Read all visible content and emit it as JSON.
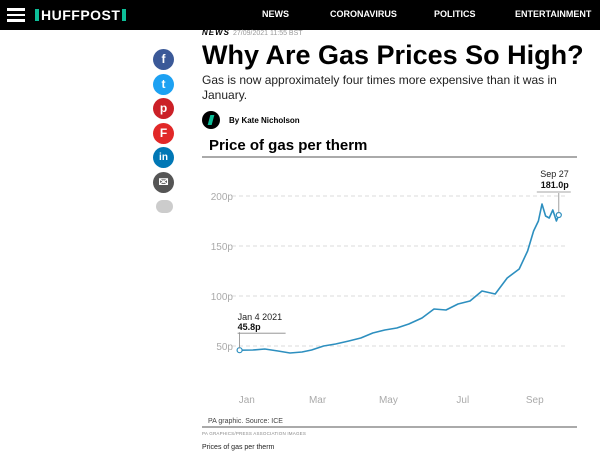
{
  "header": {
    "logo": "HUFFPOST",
    "nav": [
      {
        "label": "NEWS"
      },
      {
        "label": "CORONAVIRUS"
      },
      {
        "label": "POLITICS"
      },
      {
        "label": "ENTERTAINMENT"
      }
    ]
  },
  "article": {
    "section": "NEWS",
    "timestamp": "27/09/2021 11:55 BST",
    "title": "Why Are Gas Prices So High?",
    "subtitle": "Gas is now approximately four times more expensive than it was in January.",
    "author": "By Kate Nicholson"
  },
  "share": [
    {
      "icon": "facebook-icon",
      "glyph": "f",
      "color": "#3b5998"
    },
    {
      "icon": "twitter-icon",
      "glyph": "t",
      "color": "#1da1f2"
    },
    {
      "icon": "pinterest-icon",
      "glyph": "p",
      "color": "#cb2027"
    },
    {
      "icon": "flipboard-icon",
      "glyph": "F",
      "color": "#e12828"
    },
    {
      "icon": "linkedin-icon",
      "glyph": "in",
      "color": "#0077b5"
    },
    {
      "icon": "email-icon",
      "glyph": "✉",
      "color": "#555555"
    },
    {
      "icon": "comment-icon",
      "glyph": "",
      "color": "#cccccc"
    }
  ],
  "chart_data": {
    "type": "line",
    "title": "Price of gas per therm",
    "y_ticks": [
      "200p",
      "150p",
      "100p",
      "50p"
    ],
    "y_tick_values": [
      200,
      150,
      100,
      50
    ],
    "ylim": [
      30,
      220
    ],
    "x_ticks": [
      "Jan",
      "Mar",
      "May",
      "Jul",
      "Sep"
    ],
    "x_tick_days": [
      9,
      68,
      127,
      189,
      249
    ],
    "xlim": [
      0,
      270
    ],
    "grid": true,
    "series_color": "#2d8fbf",
    "series": [
      {
        "x": [
          "2021-01-04",
          "2021-01-15",
          "2021-01-25",
          "2021-02-05",
          "2021-02-15",
          "2021-02-25",
          "2021-03-05",
          "2021-03-15",
          "2021-03-25",
          "2021-04-05",
          "2021-04-15",
          "2021-04-25",
          "2021-05-05",
          "2021-05-15",
          "2021-05-25",
          "2021-06-05",
          "2021-06-15",
          "2021-06-25",
          "2021-07-05",
          "2021-07-15",
          "2021-07-25",
          "2021-08-05",
          "2021-08-15",
          "2021-08-25",
          "2021-09-01",
          "2021-09-06",
          "2021-09-10",
          "2021-09-13",
          "2021-09-16",
          "2021-09-19",
          "2021-09-22",
          "2021-09-25",
          "2021-09-27"
        ],
        "values": [
          45.8,
          46,
          47,
          45,
          43,
          44,
          46,
          50,
          52,
          55,
          58,
          63,
          66,
          68,
          72,
          78,
          87,
          86,
          92,
          95,
          105,
          102,
          118,
          127,
          145,
          165,
          175,
          192,
          180,
          178,
          186,
          175,
          181
        ]
      }
    ],
    "annotations": [
      {
        "date": "Jan 4 2021",
        "value": "45.8p"
      },
      {
        "date": "Sep 27",
        "value": "181.0p"
      }
    ],
    "source": "PA graphic. Source: ICE"
  },
  "figure": {
    "credit": "PA GRAPHICS/PRESS ASSOCIATION IMAGES",
    "caption": "Prices of gas per therm"
  }
}
